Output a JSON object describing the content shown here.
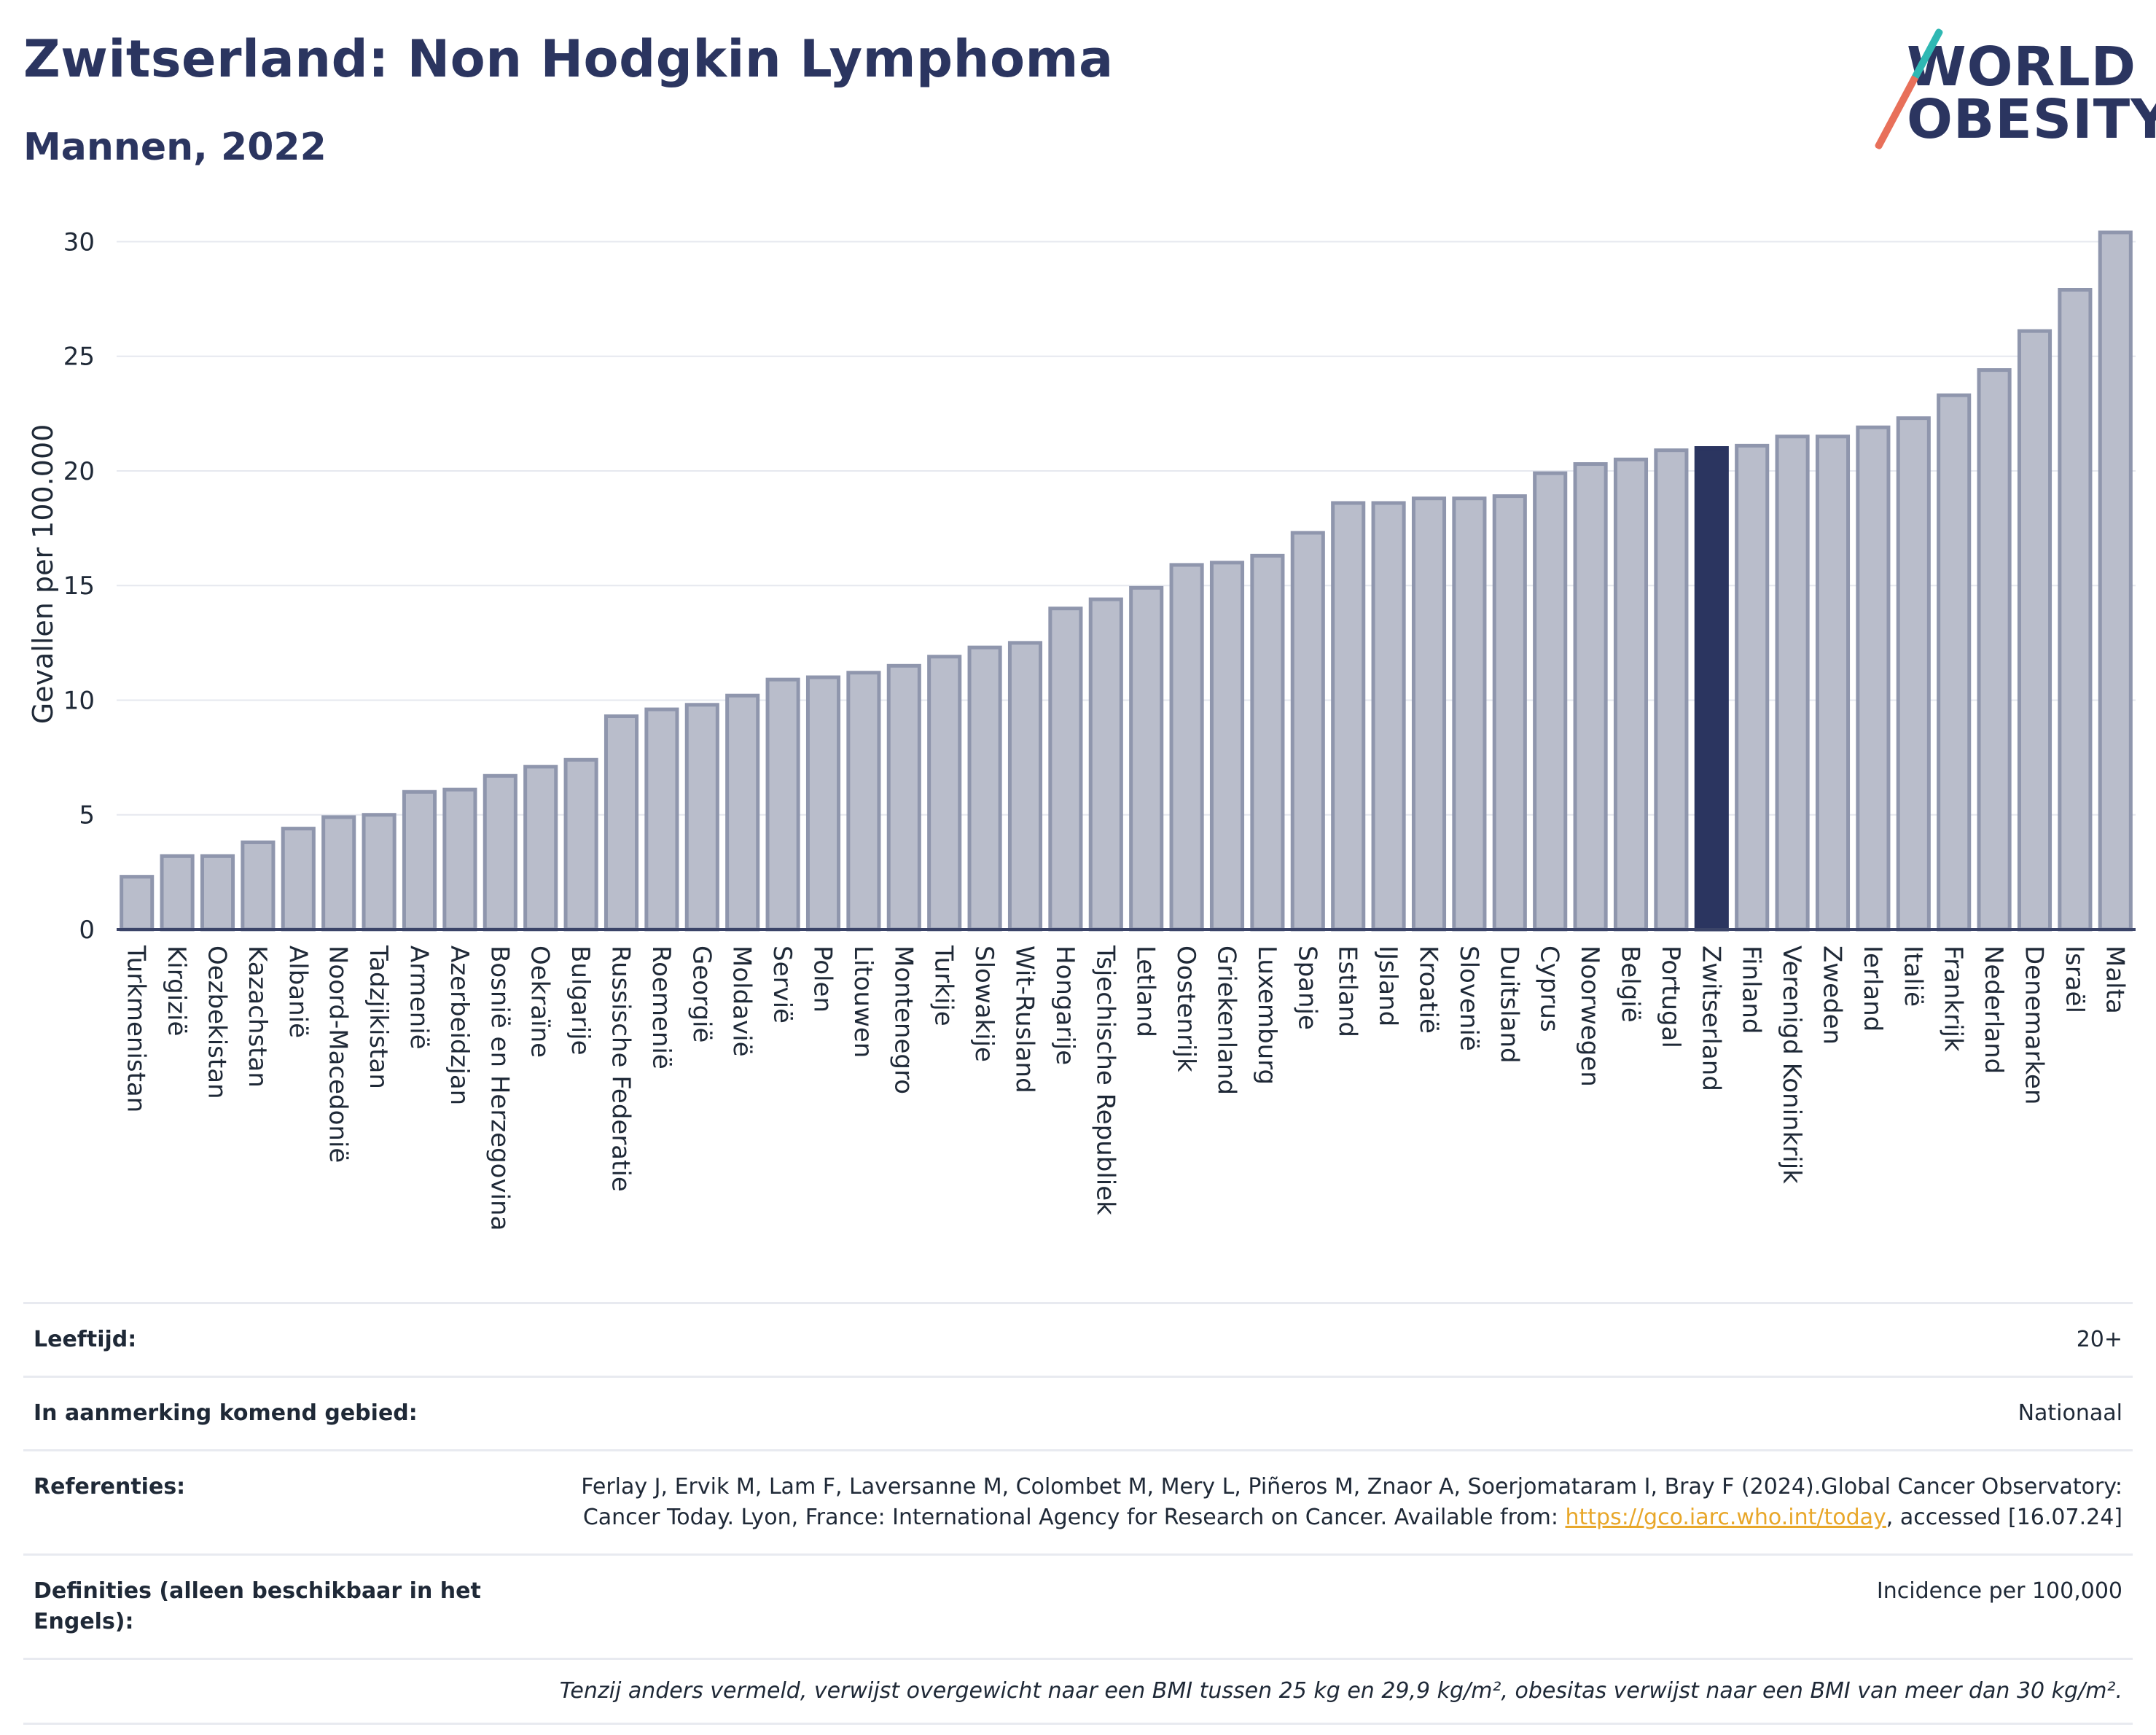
{
  "header": {
    "title": "Zwitserland: Non Hodgkin Lymphoma",
    "subtitle": "Mannen, 2022"
  },
  "logo": {
    "line1": "WORLD",
    "line2": "OBESITY"
  },
  "colors": {
    "bar": "#b9bdcb",
    "bar_stroke": "#8f96ad",
    "highlight": "#2b3560",
    "title": "#2b3560",
    "grid": "#e6e8ef"
  },
  "chart_data": {
    "type": "bar",
    "ylabel": "Gevallen per 100.000",
    "xlabel": "",
    "ylim": [
      0,
      31
    ],
    "yticks": [
      0,
      5,
      10,
      15,
      20,
      25,
      30
    ],
    "grid": true,
    "highlight": "Zwitserland",
    "categories": [
      "Turkmenistan",
      "Kirgizië",
      "Oezbekistan",
      "Kazachstan",
      "Albanië",
      "Noord-Macedonië",
      "Tadzjikistan",
      "Armenië",
      "Azerbeidzjan",
      "Bosnië en Herzegovina",
      "Oekraïne",
      "Bulgarije",
      "Russische Federatie",
      "Roemenië",
      "Georgië",
      "Moldavië",
      "Servië",
      "Polen",
      "Litouwen",
      "Montenegro",
      "Turkije",
      "Slowakije",
      "Wit-Rusland",
      "Hongarije",
      "Tsjechische Republiek",
      "Letland",
      "Oostenrijk",
      "Griekenland",
      "Luxemburg",
      "Spanje",
      "Estland",
      "IJsland",
      "Kroatië",
      "Slovenië",
      "Duitsland",
      "Cyprus",
      "Noorwegen",
      "België",
      "Portugal",
      "Zwitserland",
      "Finland",
      "Verenigd Koninkrijk",
      "Zweden",
      "Ierland",
      "Italië",
      "Frankrijk",
      "Nederland",
      "Denemarken",
      "Israël",
      "Malta"
    ],
    "values": [
      2.3,
      3.2,
      3.2,
      3.8,
      4.4,
      4.9,
      5.0,
      6.0,
      6.1,
      6.7,
      7.1,
      7.4,
      9.3,
      9.6,
      9.8,
      10.2,
      10.9,
      11.0,
      11.2,
      11.5,
      11.9,
      12.3,
      12.5,
      14.0,
      14.4,
      14.9,
      15.9,
      16.0,
      16.3,
      17.3,
      18.6,
      18.6,
      18.8,
      18.8,
      18.9,
      19.9,
      20.3,
      20.5,
      20.9,
      21.0,
      21.1,
      21.5,
      21.5,
      21.9,
      22.3,
      23.3,
      24.4,
      26.1,
      27.9,
      30.4
    ]
  },
  "meta": {
    "age_label": "Leeftijd:",
    "age_value": "20+",
    "area_label": "In aanmerking komend gebied:",
    "area_value": "Nationaal",
    "ref_label": "Referenties:",
    "ref_text_1": "Ferlay J, Ervik M, Lam F, Laversanne M, Colombet M, Mery L, Piñeros M, Znaor A, Soerjomataram I, Bray F (2024).Global Cancer Observatory: Cancer Today. Lyon, France: International Agency for Research on Cancer. Available from: ",
    "ref_link": "https://gco.iarc.who.int/today",
    "ref_text_2": ", accessed [16.07.24]",
    "def_label": "Definities (alleen beschikbaar in het Engels):",
    "def_value": "Incidence per 100,000",
    "note": "Tenzij anders vermeld, verwijst overgewicht naar een BMI tussen 25 kg en 29,9 kg/m², obesitas verwijst naar een BMI van meer dan 30 kg/m²."
  }
}
